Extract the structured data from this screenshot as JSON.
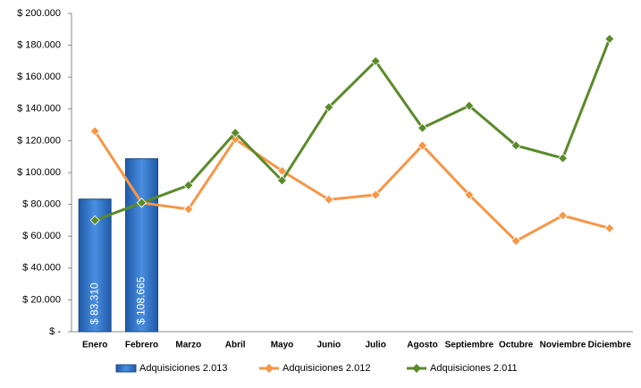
{
  "chart_data": {
    "type": "bar_line",
    "categories": [
      "Enero",
      "Febrero",
      "Marzo",
      "Abril",
      "Mayo",
      "Junio",
      "Julio",
      "Agosto",
      "Septiembre",
      "Octubre",
      "Noviembre",
      "Diciembre"
    ],
    "series": [
      {
        "name": "Adquisiciones 2.013",
        "type": "bar",
        "color": "#2e6fc0",
        "values": [
          83310,
          108665,
          null,
          null,
          null,
          null,
          null,
          null,
          null,
          null,
          null,
          null
        ],
        "value_labels": [
          "$ 83.310",
          "$ 108.665",
          null,
          null,
          null,
          null,
          null,
          null,
          null,
          null,
          null,
          null
        ]
      },
      {
        "name": "Adquisiciones 2.012",
        "type": "line",
        "color": "#f79646",
        "values": [
          126000,
          81000,
          77000,
          121000,
          101000,
          83000,
          86000,
          117000,
          86000,
          57000,
          73000,
          65000
        ]
      },
      {
        "name": "Adquisiciones 2.011",
        "type": "line",
        "color": "#5a8a2a",
        "values": [
          70000,
          81000,
          92000,
          125000,
          95000,
          141000,
          170000,
          128000,
          142000,
          117000,
          109000,
          184000
        ]
      }
    ],
    "ylim": [
      0,
      200000
    ],
    "yticks": [
      {
        "value": 0,
        "label": "$ -"
      },
      {
        "value": 20000,
        "label": "$ 20.000"
      },
      {
        "value": 40000,
        "label": "$ 40.000"
      },
      {
        "value": 60000,
        "label": "$ 60.000"
      },
      {
        "value": 80000,
        "label": "$ 80.000"
      },
      {
        "value": 100000,
        "label": "$ 100.000"
      },
      {
        "value": 120000,
        "label": "$ 120.000"
      },
      {
        "value": 140000,
        "label": "$ 140.000"
      },
      {
        "value": 160000,
        "label": "$ 160.000"
      },
      {
        "value": 180000,
        "label": "$ 180.000"
      },
      {
        "value": 200000,
        "label": "$ 200.000"
      }
    ],
    "legend": "bottom"
  }
}
